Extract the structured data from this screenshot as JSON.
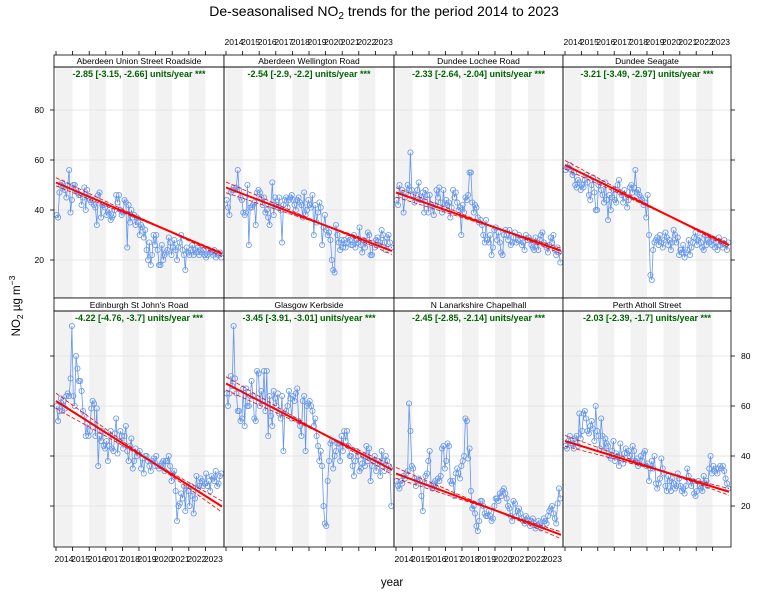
{
  "chart_data": {
    "type": "line",
    "title": "De-seasonalised NO2 trends for the period 2014 to 2023",
    "title_parts": {
      "pre": "De-seasonalised NO",
      "sub": "2",
      "post": " trends for the period 2014 to 2023"
    },
    "xlabel": "year",
    "ylabel": {
      "pre": "NO",
      "sub": "2",
      "mid": " µg m",
      "sup": "−3"
    },
    "x_ticks": [
      "2014",
      "2015",
      "2016",
      "2017",
      "2018",
      "2019",
      "2020",
      "2021",
      "2022",
      "2023"
    ],
    "xlim": [
      2014,
      2024
    ],
    "y_ticks": [
      20,
      40,
      60,
      80
    ],
    "ylim": [
      0,
      96
    ],
    "grid": true,
    "colors": {
      "series": "#6495ED",
      "trend": "#FF0000",
      "stat": "#006400",
      "band": "#F2F2F2"
    },
    "panels": [
      {
        "name": "Aberdeen Union Street Roadside",
        "stat": "-2.85 [-3.15, -2.66] units/year ***",
        "slope": -2.85,
        "lower": -3.15,
        "upper": -2.66,
        "start": 51,
        "values": [
          38,
          37,
          47,
          50,
          51,
          49,
          48,
          45,
          50,
          56,
          39,
          44,
          50,
          50,
          48,
          47,
          46,
          46,
          42,
          45,
          49,
          40,
          48,
          45,
          44,
          43,
          44,
          42,
          41,
          34,
          46,
          47,
          37,
          42,
          42,
          41,
          38,
          39,
          40,
          36,
          37,
          38,
          40,
          46,
          43,
          46,
          40,
          38,
          39,
          44,
          43,
          25,
          42,
          35,
          40,
          37,
          38,
          34,
          37,
          35,
          30,
          34,
          33,
          29,
          32,
          24,
          20,
          27,
          18,
          22,
          30,
          26,
          30,
          24,
          18,
          18,
          26,
          20,
          22,
          23,
          24,
          29,
          27,
          22,
          25,
          28,
          24,
          20,
          25,
          27,
          30,
          24,
          22,
          16,
          25,
          23,
          22,
          24,
          26,
          22,
          24,
          23,
          25,
          22,
          24,
          23,
          24,
          22,
          21,
          22,
          24,
          23,
          23,
          22,
          24,
          21,
          23,
          22,
          23,
          21
        ]
      },
      {
        "name": "Aberdeen Wellington Road",
        "stat": "-2.54 [-2.9, -2.2] units/year ***",
        "slope": -2.54,
        "lower": -2.9,
        "upper": -2.2,
        "start": 49,
        "values": [
          44,
          41,
          38,
          47,
          48,
          49,
          48,
          49,
          56,
          48,
          45,
          44,
          39,
          38,
          39,
          50,
          26,
          41,
          41,
          42,
          43,
          34,
          47,
          48,
          47,
          45,
          42,
          45,
          39,
          40,
          37,
          34,
          42,
          51,
          38,
          45,
          42,
          41,
          45,
          40,
          27,
          42,
          44,
          45,
          41,
          44,
          45,
          46,
          44,
          42,
          40,
          44,
          45,
          43,
          42,
          37,
          47,
          38,
          40,
          44,
          42,
          41,
          46,
          30,
          42,
          35,
          39,
          43,
          41,
          26,
          33,
          38,
          32,
          30,
          31,
          28,
          20,
          16,
          15,
          34,
          30,
          27,
          24,
          28,
          25,
          28,
          25,
          27,
          29,
          28,
          26,
          26,
          30,
          25,
          28,
          27,
          33,
          26,
          23,
          28,
          25,
          27,
          31,
          30,
          22,
          22,
          27,
          25,
          28,
          29,
          26,
          27,
          32,
          30,
          27,
          24,
          29,
          30,
          27,
          25
        ]
      },
      {
        "name": "Dundee Lochee Road",
        "stat": "-2.33 [-2.64, -2.04] units/year ***",
        "slope": -2.33,
        "lower": -2.64,
        "upper": -2.04,
        "start": 47,
        "values": [
          44,
          42,
          50,
          46,
          48,
          39,
          45,
          47,
          50,
          48,
          63,
          48,
          46,
          43,
          46,
          48,
          51,
          44,
          45,
          47,
          39,
          48,
          46,
          39,
          46,
          42,
          41,
          38,
          42,
          48,
          45,
          49,
          43,
          39,
          48,
          41,
          44,
          42,
          43,
          37,
          41,
          48,
          45,
          47,
          43,
          40,
          41,
          30,
          42,
          39,
          45,
          44,
          46,
          55,
          55,
          43,
          39,
          42,
          41,
          37,
          35,
          36,
          34,
          30,
          27,
          36,
          28,
          27,
          30,
          22,
          25,
          32,
          33,
          28,
          31,
          27,
          23,
          22,
          30,
          32,
          30,
          28,
          32,
          26,
          27,
          29,
          31,
          27,
          28,
          30,
          28,
          26,
          27,
          24,
          30,
          28,
          29,
          28,
          26,
          25,
          24,
          29,
          27,
          24,
          28,
          30,
          31,
          27,
          26,
          25,
          23,
          26,
          29,
          27,
          30,
          24,
          22,
          25,
          23,
          19
        ]
      },
      {
        "name": "Dundee Seagate",
        "stat": "-3.21 [-3.49, -2.97] units/year ***",
        "slope": -3.21,
        "lower": -3.49,
        "upper": -2.97,
        "start": 58,
        "values": [
          56,
          57,
          57,
          58,
          56,
          54,
          55,
          50,
          49,
          52,
          51,
          48,
          50,
          49,
          52,
          54,
          51,
          46,
          44,
          50,
          53,
          47,
          40,
          40,
          50,
          51,
          48,
          46,
          43,
          51,
          44,
          36,
          46,
          40,
          45,
          48,
          44,
          43,
          50,
          52,
          47,
          46,
          43,
          48,
          45,
          41,
          44,
          49,
          50,
          47,
          49,
          56,
          47,
          48,
          46,
          45,
          44,
          42,
          43,
          37,
          46,
          30,
          14,
          12,
          24,
          27,
          28,
          29,
          26,
          30,
          27,
          25,
          28,
          31,
          29,
          26,
          28,
          24,
          27,
          32,
          30,
          27,
          29,
          22,
          24,
          23,
          26,
          21,
          23,
          24,
          28,
          22,
          25,
          27,
          29,
          31,
          26,
          28,
          29,
          27,
          25,
          24,
          30,
          26,
          28,
          27,
          29,
          26,
          28,
          25,
          27,
          24,
          29,
          26,
          27,
          25,
          28,
          26,
          24,
          27
        ]
      },
      {
        "name": "Edinburgh St John's Road",
        "stat": "-4.22 [-4.76, -3.7] units/year ***",
        "slope": -4.22,
        "lower": -4.76,
        "upper": -3.7,
        "start": 62,
        "values": [
          60,
          54,
          58,
          63,
          58,
          62,
          59,
          64,
          65,
          64,
          71,
          92,
          64,
          60,
          80,
          75,
          70,
          70,
          66,
          58,
          56,
          48,
          53,
          48,
          50,
          59,
          62,
          61,
          48,
          59,
          36,
          48,
          46,
          50,
          44,
          43,
          46,
          38,
          44,
          50,
          43,
          42,
          49,
          55,
          41,
          46,
          50,
          48,
          43,
          48,
          52,
          42,
          38,
          44,
          47,
          35,
          38,
          43,
          40,
          41,
          42,
          35,
          39,
          33,
          40,
          40,
          38,
          36,
          34,
          38,
          39,
          36,
          40,
          36,
          35,
          36,
          37,
          38,
          34,
          38,
          38,
          40,
          36,
          30,
          33,
          34,
          26,
          14,
          20,
          21,
          25,
          23,
          28,
          18,
          28,
          26,
          20,
          28,
          24,
          17,
          23,
          32,
          27,
          28,
          31,
          30,
          28,
          29,
          33,
          28,
          30,
          26,
          32,
          31,
          30,
          34,
          28,
          29,
          32,
          33
        ]
      },
      {
        "name": "Glasgow Kerbside",
        "stat": "-3.45 [-3.91, -3.01] units/year ***",
        "slope": -3.45,
        "lower": -3.91,
        "upper": -3.01,
        "start": 69,
        "values": [
          65,
          60,
          65,
          72,
          68,
          92,
          71,
          65,
          58,
          58,
          54,
          55,
          67,
          52,
          67,
          60,
          60,
          64,
          70,
          64,
          55,
          54,
          74,
          73,
          60,
          66,
          62,
          74,
          58,
          74,
          48,
          64,
          56,
          52,
          66,
          63,
          60,
          65,
          57,
          55,
          64,
          42,
          57,
          58,
          60,
          66,
          63,
          55,
          64,
          62,
          65,
          67,
          54,
          52,
          48,
          62,
          64,
          42,
          60,
          61,
          62,
          60,
          58,
          52,
          55,
          48,
          44,
          38,
          42,
          36,
          20,
          13,
          12,
          30,
          38,
          45,
          46,
          35,
          40,
          42,
          45,
          45,
          38,
          48,
          42,
          50,
          46,
          50,
          44,
          40,
          40,
          36,
          32,
          38,
          42,
          40,
          34,
          35,
          37,
          40,
          36,
          44,
          38,
          43,
          30,
          36,
          38,
          40,
          34,
          37,
          38,
          32,
          42,
          38,
          34,
          40,
          38,
          36,
          35,
          20
        ]
      },
      {
        "name": "N Lanarkshire Chapelhall",
        "stat": "-2.45 [-2.85, -2.14] units/year ***",
        "slope": -2.45,
        "lower": -2.85,
        "upper": -2.14,
        "start": 33,
        "values": [
          30,
          28,
          27,
          30,
          29,
          32,
          31,
          33,
          34,
          61,
          50,
          36,
          35,
          31,
          28,
          30,
          31,
          30,
          24,
          18,
          29,
          32,
          33,
          38,
          42,
          28,
          27,
          29,
          30,
          27,
          31,
          30,
          32,
          43,
          44,
          35,
          38,
          45,
          44,
          30,
          29,
          30,
          24,
          33,
          35,
          33,
          31,
          36,
          38,
          40,
          55,
          54,
          39,
          43,
          26,
          19,
          20,
          17,
          12,
          10,
          14,
          22,
          22,
          20,
          17,
          16,
          16,
          18,
          16,
          14,
          15,
          20,
          23,
          23,
          22,
          25,
          24,
          26,
          27,
          25,
          23,
          20,
          19,
          16,
          14,
          22,
          21,
          16,
          18,
          19,
          17,
          15,
          14,
          13,
          16,
          15,
          14,
          12,
          14,
          15,
          13,
          11,
          12,
          14,
          13,
          11,
          12,
          15,
          14,
          13,
          16,
          18,
          19,
          20,
          17,
          15,
          13,
          21,
          27,
          23
        ]
      },
      {
        "name": "Perth Atholl Street",
        "stat": "-2.03 [-2.39, -1.7] units/year ***",
        "slope": -2.03,
        "lower": -2.39,
        "upper": -1.7,
        "start": 46,
        "values": [
          44,
          43,
          46,
          48,
          45,
          45,
          43,
          47,
          48,
          44,
          57,
          47,
          50,
          57,
          58,
          55,
          50,
          49,
          52,
          54,
          51,
          46,
          60,
          50,
          48,
          43,
          55,
          48,
          42,
          47,
          45,
          44,
          40,
          39,
          42,
          46,
          38,
          41,
          40,
          36,
          45,
          39,
          37,
          41,
          43,
          41,
          42,
          40,
          38,
          44,
          42,
          38,
          39,
          36,
          37,
          40,
          38,
          41,
          42,
          36,
          37,
          30,
          35,
          38,
          35,
          40,
          29,
          27,
          29,
          31,
          39,
          35,
          33,
          28,
          26,
          32,
          30,
          26,
          31,
          29,
          27,
          28,
          33,
          31,
          28,
          26,
          27,
          25,
          28,
          35,
          32,
          30,
          28,
          30,
          25,
          24,
          26,
          30,
          28,
          27,
          26,
          32,
          29,
          30,
          28,
          35,
          40,
          33,
          36,
          34,
          35,
          33,
          35,
          36,
          35,
          36,
          34,
          31,
          29,
          27
        ]
      }
    ]
  }
}
